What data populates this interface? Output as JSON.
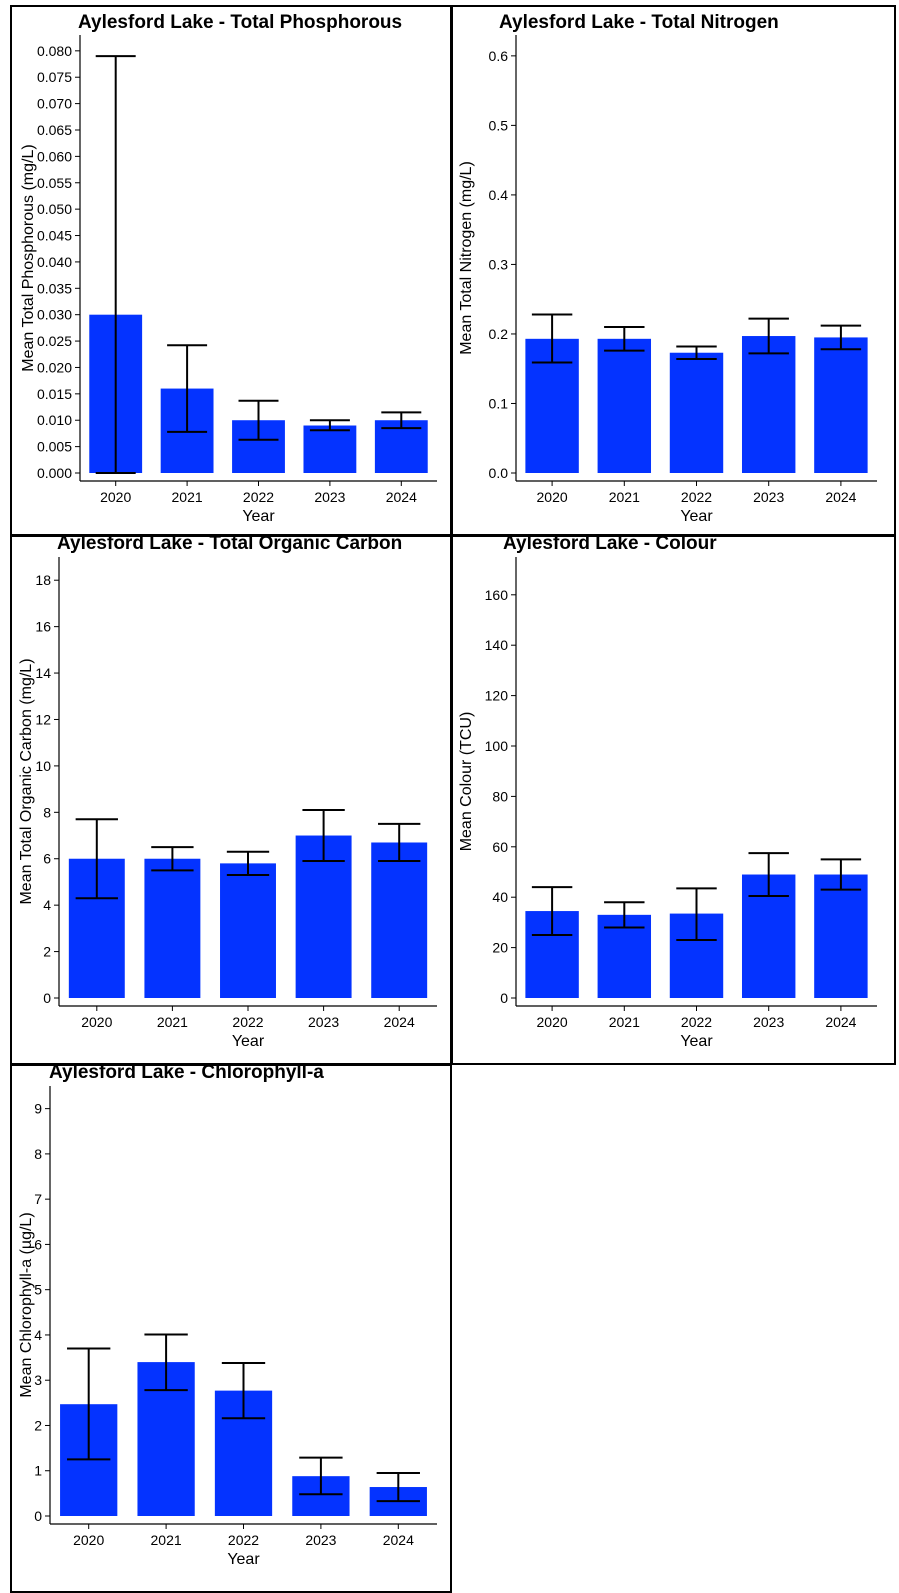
{
  "chart_data": [
    {
      "type": "bar",
      "title": "Aylesford Lake - Total Phosphorous",
      "xlabel": "Year",
      "ylabel": "Mean Total Phosphorous (mg/L)",
      "categories": [
        "2020",
        "2021",
        "2022",
        "2023",
        "2024"
      ],
      "values": [
        0.03,
        0.016,
        0.01,
        0.009,
        0.01
      ],
      "error_low": [
        0.0,
        0.0078,
        0.0063,
        0.0081,
        0.0085
      ],
      "error_high": [
        0.079,
        0.0242,
        0.0137,
        0.01,
        0.0115
      ],
      "ylim": [
        0,
        0.083
      ],
      "yticks": [
        "0.000",
        "0.005",
        "0.010",
        "0.015",
        "0.020",
        "0.025",
        "0.030",
        "0.035",
        "0.040",
        "0.045",
        "0.050",
        "0.055",
        "0.060",
        "0.065",
        "0.070",
        "0.075",
        "0.080"
      ],
      "bar_color": "#0433ff",
      "grid": false
    },
    {
      "type": "bar",
      "title": "Aylesford Lake - Total Nitrogen",
      "xlabel": "Year",
      "ylabel": "Mean Total Nitrogen (mg/L)",
      "categories": [
        "2020",
        "2021",
        "2022",
        "2023",
        "2024"
      ],
      "values": [
        0.193,
        0.193,
        0.173,
        0.197,
        0.195
      ],
      "error_low": [
        0.159,
        0.176,
        0.164,
        0.172,
        0.178
      ],
      "error_high": [
        0.228,
        0.21,
        0.182,
        0.222,
        0.212
      ],
      "ylim": [
        0,
        0.63
      ],
      "yticks": [
        "0.0",
        "0.1",
        "0.2",
        "0.3",
        "0.4",
        "0.5",
        "0.6"
      ],
      "bar_color": "#0433ff",
      "grid": false
    },
    {
      "type": "bar",
      "title": "Aylesford Lake - Total Organic Carbon",
      "xlabel": "Year",
      "ylabel": "Mean Total Organic Carbon (mg/L)",
      "categories": [
        "2020",
        "2021",
        "2022",
        "2023",
        "2024"
      ],
      "values": [
        6.0,
        6.0,
        5.8,
        7.0,
        6.7
      ],
      "error_low": [
        4.3,
        5.5,
        5.3,
        5.9,
        5.9
      ],
      "error_high": [
        7.7,
        6.5,
        6.3,
        8.1,
        7.5
      ],
      "ylim": [
        0,
        19
      ],
      "yticks": [
        "0",
        "2",
        "4",
        "6",
        "8",
        "10",
        "12",
        "14",
        "16",
        "18"
      ],
      "bar_color": "#0433ff",
      "grid": false
    },
    {
      "type": "bar",
      "title": "Aylesford Lake - Colour",
      "xlabel": "Year",
      "ylabel": "Mean Colour (TCU)",
      "categories": [
        "2020",
        "2021",
        "2022",
        "2023",
        "2024"
      ],
      "values": [
        34.5,
        33.0,
        33.5,
        49.0,
        49.0
      ],
      "error_low": [
        25.0,
        28.0,
        23.0,
        40.5,
        43.0
      ],
      "error_high": [
        44.0,
        38.0,
        43.5,
        57.5,
        55.0
      ],
      "ylim": [
        0,
        175
      ],
      "yticks": [
        "0",
        "20",
        "40",
        "60",
        "80",
        "100",
        "120",
        "140",
        "160"
      ],
      "bar_color": "#0433ff",
      "grid": false
    },
    {
      "type": "bar",
      "title": "Aylesford Lake - Chlorophyll-a",
      "xlabel": "Year",
      "ylabel": "Mean Chlorophyll-a (µg/L)",
      "categories": [
        "2020",
        "2021",
        "2022",
        "2023",
        "2024"
      ],
      "values": [
        2.47,
        3.4,
        2.77,
        0.88,
        0.64
      ],
      "error_low": [
        1.25,
        2.78,
        2.16,
        0.48,
        0.33
      ],
      "error_high": [
        3.7,
        4.01,
        3.38,
        1.29,
        0.95
      ],
      "ylim": [
        0,
        9.5
      ],
      "yticks": [
        "0",
        "1",
        "2",
        "3",
        "4",
        "5",
        "6",
        "7",
        "8",
        "9"
      ],
      "bar_color": "#0433ff",
      "grid": false
    }
  ]
}
